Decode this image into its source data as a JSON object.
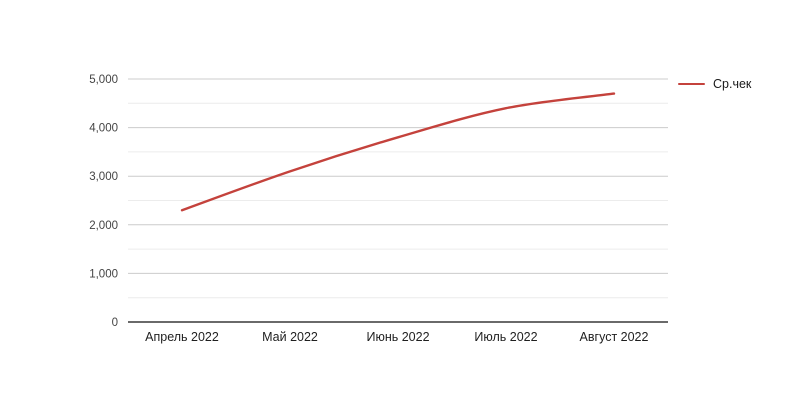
{
  "chart_data": {
    "type": "line",
    "title": "",
    "xlabel": "",
    "ylabel": "",
    "categories": [
      "Апрель 2022",
      "Май 2022",
      "Июнь 2022",
      "Июль 2022",
      "Август 2022"
    ],
    "series": [
      {
        "name": "Ср.чек",
        "values": [
          2300,
          3100,
          3800,
          4400,
          4700
        ],
        "color": "#c4423c"
      }
    ],
    "ylim": [
      0,
      5000
    ],
    "yticks": [
      0,
      1000,
      2000,
      3000,
      4000,
      5000
    ],
    "ytick_labels": [
      "0",
      "1,000",
      "2,000",
      "3,000",
      "4,000",
      "5,000"
    ],
    "grid": "on",
    "minor_gridlines": "on",
    "legend_position": "right",
    "curve": "smooth"
  },
  "colors": {
    "line": "#c4423c",
    "grid_major": "#cccccc",
    "grid_minor": "#ececec",
    "axis": "#111111",
    "y_tick_label": "#444444",
    "x_tick_label": "#1f1f1f",
    "background": "#ffffff"
  }
}
